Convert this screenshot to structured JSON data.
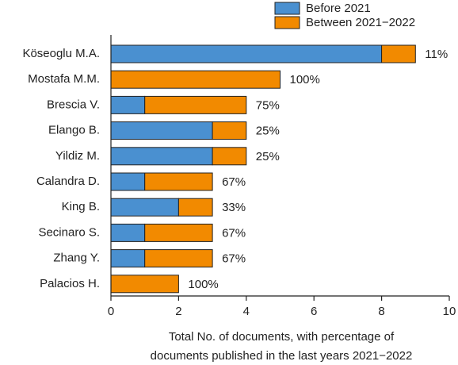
{
  "chart_data": {
    "type": "barh-stacked",
    "categories": [
      "Köseoglu M.A.",
      "Mostafa M.M.",
      "Brescia V.",
      "Elango B.",
      "Yildiz M.",
      "Calandra D.",
      "King B.",
      "Secinaro S.",
      "Zhang Y.",
      "Palacios H."
    ],
    "series": [
      {
        "name": "Before 2021",
        "color": "#4a90d0",
        "values": [
          8,
          0,
          1,
          3,
          3,
          1,
          2,
          1,
          1,
          0
        ]
      },
      {
        "name": "Between 2021−2022",
        "color": "#f28a00",
        "values": [
          1,
          5,
          3,
          1,
          1,
          2,
          1,
          2,
          2,
          2
        ]
      }
    ],
    "percent_labels": [
      "11%",
      "100%",
      "75%",
      "25%",
      "25%",
      "67%",
      "33%",
      "67%",
      "67%",
      "100%"
    ],
    "xlim": [
      0,
      10
    ],
    "xticks": [
      0,
      2,
      4,
      6,
      8,
      10
    ],
    "xlabel": [
      "Total No. of documents, with percentage of",
      "documents published in the last years 2021−2022"
    ],
    "legend": "top-right"
  }
}
